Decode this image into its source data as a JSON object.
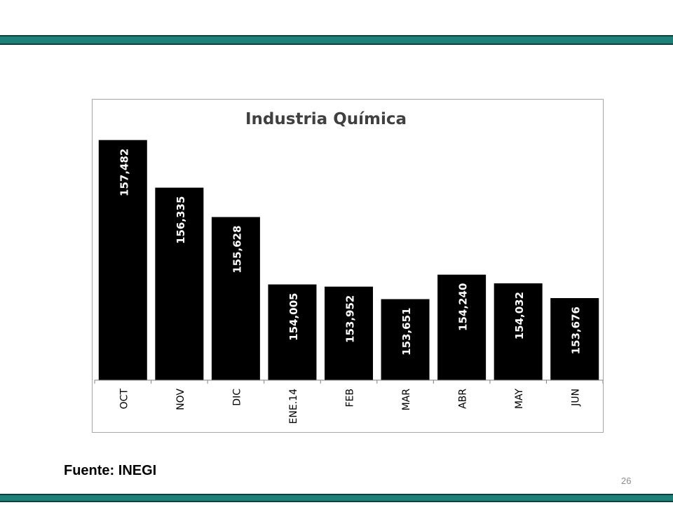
{
  "slide": {
    "source_note": "Fuente: INEGI",
    "page_number": "26",
    "accent_color": "#1f7f79"
  },
  "chart_data": {
    "type": "bar",
    "title": "Industria Química",
    "categories": [
      "OCT",
      "NOV",
      "DIC",
      "ENE.14",
      "FEB",
      "MAR",
      "ABR",
      "MAY",
      "JUN"
    ],
    "values": [
      157482,
      156335,
      155628,
      154005,
      153952,
      153651,
      154240,
      154032,
      153676
    ],
    "value_labels": [
      "157,482",
      "156,335",
      "155,628",
      "154,005",
      "153,952",
      "153,651",
      "154,240",
      "154,032",
      "153,676"
    ],
    "bar_color": "#000000",
    "data_label_color": "#ffffff",
    "grid": false,
    "legend": "none"
  }
}
